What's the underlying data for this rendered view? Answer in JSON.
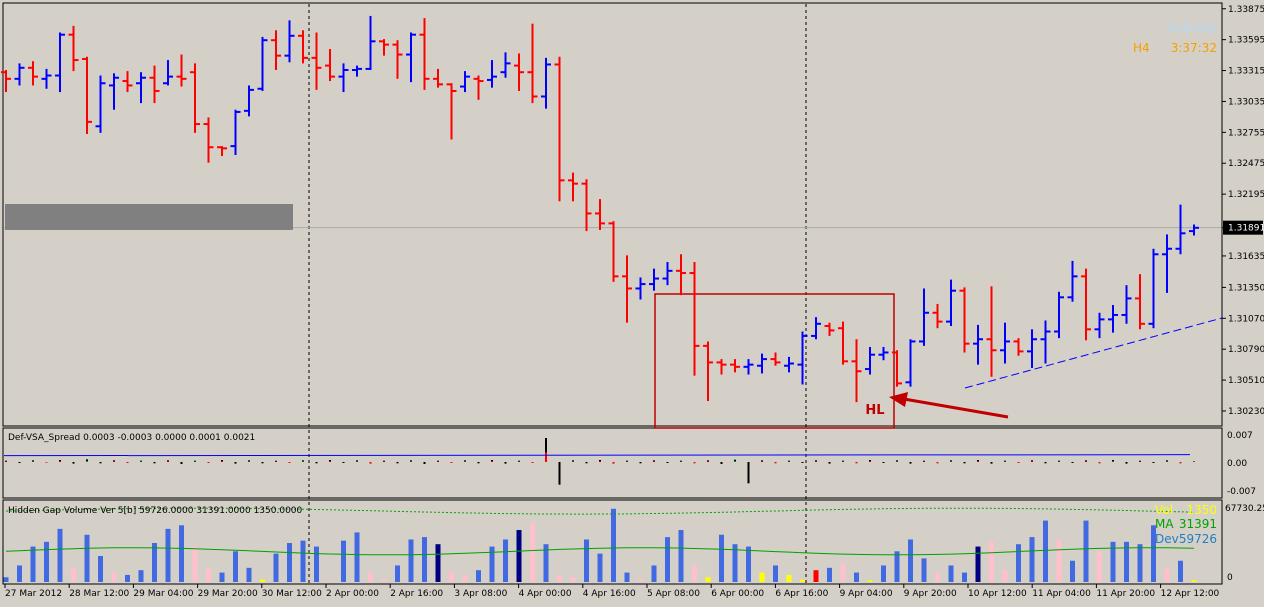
{
  "chart_data": [
    {
      "type": "ohlc",
      "symbol": "EURUSD",
      "timeframe": "H4",
      "timer": "3:37:32",
      "current_price": "1.31891",
      "ylim": [
        1.3013,
        1.339
      ],
      "y_ticks": [
        "1.33875",
        "1.33595",
        "1.33315",
        "1.33035",
        "1.32755",
        "1.32475",
        "1.32195",
        "1.31891",
        "1.31635",
        "1.31350",
        "1.31070",
        "1.30790",
        "1.30510",
        "1.30230"
      ],
      "x_ticks": [
        "27 Mar 2012",
        "28 Mar 12:00",
        "29 Mar 04:00",
        "29 Mar 20:00",
        "30 Mar 12:00",
        "2 Apr 00:00",
        "2 Apr 16:00",
        "3 Apr 08:00",
        "4 Apr 00:00",
        "4 Apr 16:00",
        "5 Apr 08:00",
        "6 Apr 00:00",
        "6 Apr 16:00",
        "9 Apr 04:00",
        "9 Apr 20:00",
        "10 Apr 12:00",
        "11 Apr 04:00",
        "11 Apr 20:00",
        "12 Apr 12:00"
      ],
      "colors": {
        "bull": "#0000ff",
        "bear": "#ff0000",
        "bid_line": "#a8a8a8",
        "trendline": "#0000ff"
      },
      "bars": [
        [
          1.333,
          1.3332,
          1.3312,
          1.3324
        ],
        [
          1.3324,
          1.3338,
          1.3318,
          1.3334
        ],
        [
          1.3334,
          1.334,
          1.3318,
          1.3326
        ],
        [
          1.3324,
          1.3333,
          1.3315,
          1.3327
        ],
        [
          1.3327,
          1.3366,
          1.3312,
          1.3364
        ],
        [
          1.3364,
          1.3372,
          1.3331,
          1.3341
        ],
        [
          1.3342,
          1.3344,
          1.3274,
          1.3285
        ],
        [
          1.3281,
          1.3327,
          1.3275,
          1.332
        ],
        [
          1.3318,
          1.3329,
          1.3296,
          1.3325
        ],
        [
          1.3322,
          1.3331,
          1.3312,
          1.3318
        ],
        [
          1.332,
          1.333,
          1.3302,
          1.3325
        ],
        [
          1.3325,
          1.3336,
          1.3302,
          1.3313
        ],
        [
          1.332,
          1.3341,
          1.3318,
          1.3326
        ],
        [
          1.3326,
          1.3346,
          1.3317,
          1.3324
        ],
        [
          1.333,
          1.3338,
          1.3275,
          1.3283
        ],
        [
          1.3283,
          1.3289,
          1.3248,
          1.3262
        ],
        [
          1.3262,
          1.3263,
          1.3254,
          1.3261
        ],
        [
          1.3263,
          1.3296,
          1.3255,
          1.3294
        ],
        [
          1.3295,
          1.3318,
          1.329,
          1.3314
        ],
        [
          1.3315,
          1.3362,
          1.3313,
          1.3359
        ],
        [
          1.3359,
          1.3368,
          1.3332,
          1.3345
        ],
        [
          1.3345,
          1.3377,
          1.3339,
          1.3363
        ],
        [
          1.3363,
          1.3368,
          1.3338,
          1.3343
        ],
        [
          1.3343,
          1.3366,
          1.3314,
          1.3334
        ],
        [
          1.3336,
          1.3351,
          1.3322,
          1.3326
        ],
        [
          1.3326,
          1.3338,
          1.3312,
          1.3332
        ],
        [
          1.3332,
          1.3336,
          1.3326,
          1.3333
        ],
        [
          1.3333,
          1.3381,
          1.3332,
          1.3358
        ],
        [
          1.3358,
          1.336,
          1.3345,
          1.3355
        ],
        [
          1.3355,
          1.3359,
          1.3324,
          1.3346
        ],
        [
          1.3346,
          1.3366,
          1.3321,
          1.3364
        ],
        [
          1.3364,
          1.3379,
          1.3314,
          1.3324
        ],
        [
          1.3324,
          1.3333,
          1.3316,
          1.3319
        ],
        [
          1.3319,
          1.332,
          1.3269,
          1.3313
        ],
        [
          1.3317,
          1.3331,
          1.3312,
          1.3326
        ],
        [
          1.3324,
          1.3327,
          1.3305,
          1.3322
        ],
        [
          1.3323,
          1.3341,
          1.3316,
          1.3326
        ],
        [
          1.333,
          1.3348,
          1.3325,
          1.3338
        ],
        [
          1.3336,
          1.3347,
          1.3313,
          1.333
        ],
        [
          1.333,
          1.3374,
          1.3302,
          1.3308
        ],
        [
          1.3308,
          1.3343,
          1.3297,
          1.3337
        ],
        [
          1.3337,
          1.3344,
          1.3213,
          1.3232
        ],
        [
          1.3232,
          1.3239,
          1.3213,
          1.3229
        ],
        [
          1.3229,
          1.3233,
          1.3186,
          1.3202
        ],
        [
          1.3202,
          1.3215,
          1.3187,
          1.3193
        ],
        [
          1.3193,
          1.3195,
          1.314,
          1.3145
        ],
        [
          1.3145,
          1.3164,
          1.3103,
          1.3134
        ],
        [
          1.3134,
          1.3144,
          1.3124,
          1.3138
        ],
        [
          1.3138,
          1.3152,
          1.3132,
          1.3143
        ],
        [
          1.3143,
          1.3158,
          1.3137,
          1.315
        ],
        [
          1.315,
          1.3165,
          1.3128,
          1.3148
        ],
        [
          1.3148,
          1.3158,
          1.3055,
          1.3082
        ],
        [
          1.3082,
          1.3086,
          1.3032,
          1.3067
        ],
        [
          1.3067,
          1.307,
          1.3056,
          1.3065
        ],
        [
          1.3065,
          1.307,
          1.3058,
          1.3063
        ],
        [
          1.3063,
          1.307,
          1.3056,
          1.3065
        ],
        [
          1.3064,
          1.3075,
          1.3057,
          1.307
        ],
        [
          1.307,
          1.3076,
          1.3064,
          1.3067
        ],
        [
          1.3064,
          1.3072,
          1.3058,
          1.3066
        ],
        [
          1.3065,
          1.3095,
          1.3047,
          1.3091
        ],
        [
          1.3091,
          1.3108,
          1.3088,
          1.3102
        ],
        [
          1.31,
          1.3103,
          1.3091,
          1.3096
        ],
        [
          1.3098,
          1.3104,
          1.3065,
          1.3068
        ],
        [
          1.3068,
          1.3088,
          1.3031,
          1.3059
        ],
        [
          1.3061,
          1.3081,
          1.3056,
          1.3074
        ],
        [
          1.3074,
          1.3081,
          1.3069,
          1.3076
        ],
        [
          1.3076,
          1.3078,
          1.3045,
          1.3048
        ],
        [
          1.3049,
          1.3088,
          1.3045,
          1.3086
        ],
        [
          1.3086,
          1.3134,
          1.3082,
          1.3112
        ],
        [
          1.3112,
          1.312,
          1.3098,
          1.3104
        ],
        [
          1.3104,
          1.3142,
          1.31,
          1.3132
        ],
        [
          1.3132,
          1.3135,
          1.3076,
          1.3084
        ],
        [
          1.3084,
          1.3101,
          1.3065,
          1.3088
        ],
        [
          1.3088,
          1.3136,
          1.3054,
          1.3078
        ],
        [
          1.3078,
          1.3103,
          1.3066,
          1.3086
        ],
        [
          1.3086,
          1.3089,
          1.3073,
          1.3077
        ],
        [
          1.3077,
          1.3097,
          1.3062,
          1.3088
        ],
        [
          1.3088,
          1.3105,
          1.3066,
          1.3095
        ],
        [
          1.3095,
          1.3131,
          1.3089,
          1.3126
        ],
        [
          1.3126,
          1.3159,
          1.3122,
          1.3145
        ],
        [
          1.3145,
          1.3152,
          1.3087,
          1.3097
        ],
        [
          1.3097,
          1.3112,
          1.3089,
          1.3106
        ],
        [
          1.3106,
          1.3119,
          1.3094,
          1.311
        ],
        [
          1.311,
          1.3137,
          1.3102,
          1.3125
        ],
        [
          1.3125,
          1.3147,
          1.3097,
          1.3102
        ],
        [
          1.3102,
          1.317,
          1.3098,
          1.3165
        ],
        [
          1.3165,
          1.3183,
          1.313,
          1.317
        ],
        [
          1.317,
          1.321,
          1.3165,
          1.3184
        ],
        [
          1.3186,
          1.3192,
          1.3182,
          1.3189
        ]
      ],
      "annotation_label": "HL"
    },
    {
      "type": "bar",
      "title": "Def-VSA_Spread 0.0003 -0.0003 0.0000 0.0001 0.0021",
      "y_ticks": [
        "0.007",
        "0.00",
        "-0.007"
      ],
      "ylim": [
        -0.009,
        0.009
      ],
      "values": [
        0.0004,
        -0.0003,
        0.0005,
        -0.0002,
        0.0006,
        -0.0005,
        0.0008,
        -0.0004,
        0.0005,
        -0.0003,
        0.0004,
        -0.0004,
        0.0005,
        -0.0006,
        0.0004,
        -0.0003,
        0.0006,
        -0.0005,
        0.0005,
        -0.0004,
        0.0004,
        -0.0003,
        0.0005,
        -0.0004,
        0.0006,
        -0.0003,
        0.0005,
        -0.0005,
        0.0004,
        -0.0004,
        0.0005,
        -0.0006,
        0.0004,
        -0.0003,
        0.0005,
        -0.0004,
        0.0006,
        -0.0005,
        0.0004,
        -0.0003,
        0.0072,
        -0.0068,
        0.0005,
        -0.0004,
        0.0006,
        -0.0005,
        0.0004,
        -0.0004,
        0.0005,
        -0.0003,
        0.0004,
        -0.0004,
        0.0005,
        -0.0006,
        0.0007,
        -0.0064,
        0.0005,
        -0.0004,
        0.0004,
        -0.0003,
        0.0005,
        -0.0005,
        0.0004,
        -0.0004,
        0.0006,
        -0.0003,
        0.0005,
        -0.0005,
        0.0004,
        -0.0004,
        0.0005,
        -0.0004,
        0.0006,
        -0.0005,
        0.0004,
        -0.0003,
        0.0005,
        -0.0004,
        0.0004,
        -0.0003,
        0.0005,
        -0.0004,
        0.0006,
        -0.0005,
        0.0004,
        -0.0003,
        0.0005,
        -0.0004,
        0.0002
      ],
      "signal_line": 0.0001
    },
    {
      "type": "bar",
      "title": "Hidden Gap Volume Ver 5[b] 59726.0000 31391.0000 1350.0000",
      "y_ticks": [
        "67730.25",
        "0"
      ],
      "ylim": [
        0,
        67730.25
      ],
      "legend": [
        {
          "label": "Vol",
          "value": "1350",
          "color": "#ffff00"
        },
        {
          "label": "MA",
          "value": "31391",
          "color": "#00a000"
        },
        {
          "label": "Dev",
          "value": "59726",
          "color": "#2080c0"
        }
      ],
      "values": [
        4000,
        14000,
        30000,
        34000,
        45000,
        12000,
        40000,
        22000,
        8000,
        6000,
        10000,
        33000,
        45000,
        48000,
        30000,
        12000,
        8000,
        26000,
        12000,
        2000,
        24000,
        33000,
        35000,
        30000,
        1000,
        35000,
        42000,
        8000,
        2000,
        14000,
        36000,
        38000,
        32000,
        9000,
        6000,
        10000,
        30000,
        36000,
        44000,
        50000,
        32000,
        6000,
        4000,
        36000,
        24000,
        62000,
        8000,
        2000,
        14000,
        38000,
        44000,
        14000,
        4000,
        40000,
        32000,
        30000,
        8000,
        14000,
        6000,
        2000,
        10000,
        12000,
        16000,
        8000,
        1200,
        14000,
        26000,
        36000,
        20000,
        8000,
        14000,
        8000,
        30000,
        34000,
        10000,
        32000,
        38000,
        52000,
        36000,
        18000,
        52000,
        26000,
        34000,
        34000,
        32000,
        48000,
        12000,
        18000,
        1350
      ],
      "colors": [
        "#4169e1",
        "#4169e1",
        "#4169e1",
        "#4169e1",
        "#4169e1",
        "#ffc0cb",
        "#4169e1",
        "#4169e1",
        "#ffc0cb",
        "#4169e1",
        "#4169e1",
        "#4169e1",
        "#4169e1",
        "#4169e1",
        "#ffc0cb",
        "#ffc0cb",
        "#4169e1",
        "#4169e1",
        "#4169e1",
        "#ffff00",
        "#4169e1",
        "#4169e1",
        "#4169e1",
        "#4169e1",
        "#ffc0cb",
        "#4169e1",
        "#4169e1",
        "#ffc0cb",
        "#ffc0cb",
        "#4169e1",
        "#4169e1",
        "#4169e1",
        "#000080",
        "#ffc0cb",
        "#ffc0cb",
        "#4169e1",
        "#4169e1",
        "#4169e1",
        "#000080",
        "#ffc0cb",
        "#4169e1",
        "#ffc0cb",
        "#ffc0cb",
        "#4169e1",
        "#4169e1",
        "#4169e1",
        "#4169e1",
        "#ffc0cb",
        "#4169e1",
        "#4169e1",
        "#4169e1",
        "#ffc0cb",
        "#ffff00",
        "#4169e1",
        "#4169e1",
        "#4169e1",
        "#ffff00",
        "#4169e1",
        "#ffff00",
        "#ffff00",
        "#ff0000",
        "#4169e1",
        "#ffc0cb",
        "#4169e1",
        "#ffff00",
        "#4169e1",
        "#4169e1",
        "#4169e1",
        "#4169e1",
        "#ffc0cb",
        "#4169e1",
        "#4169e1",
        "#000080",
        "#ffc0cb",
        "#ffc0cb",
        "#4169e1",
        "#4169e1",
        "#4169e1",
        "#ffc0cb",
        "#4169e1",
        "#4169e1",
        "#ffc0cb",
        "#4169e1",
        "#4169e1",
        "#4169e1",
        "#4169e1",
        "#ffc0cb",
        "#4169e1",
        "#ffff00"
      ]
    }
  ]
}
